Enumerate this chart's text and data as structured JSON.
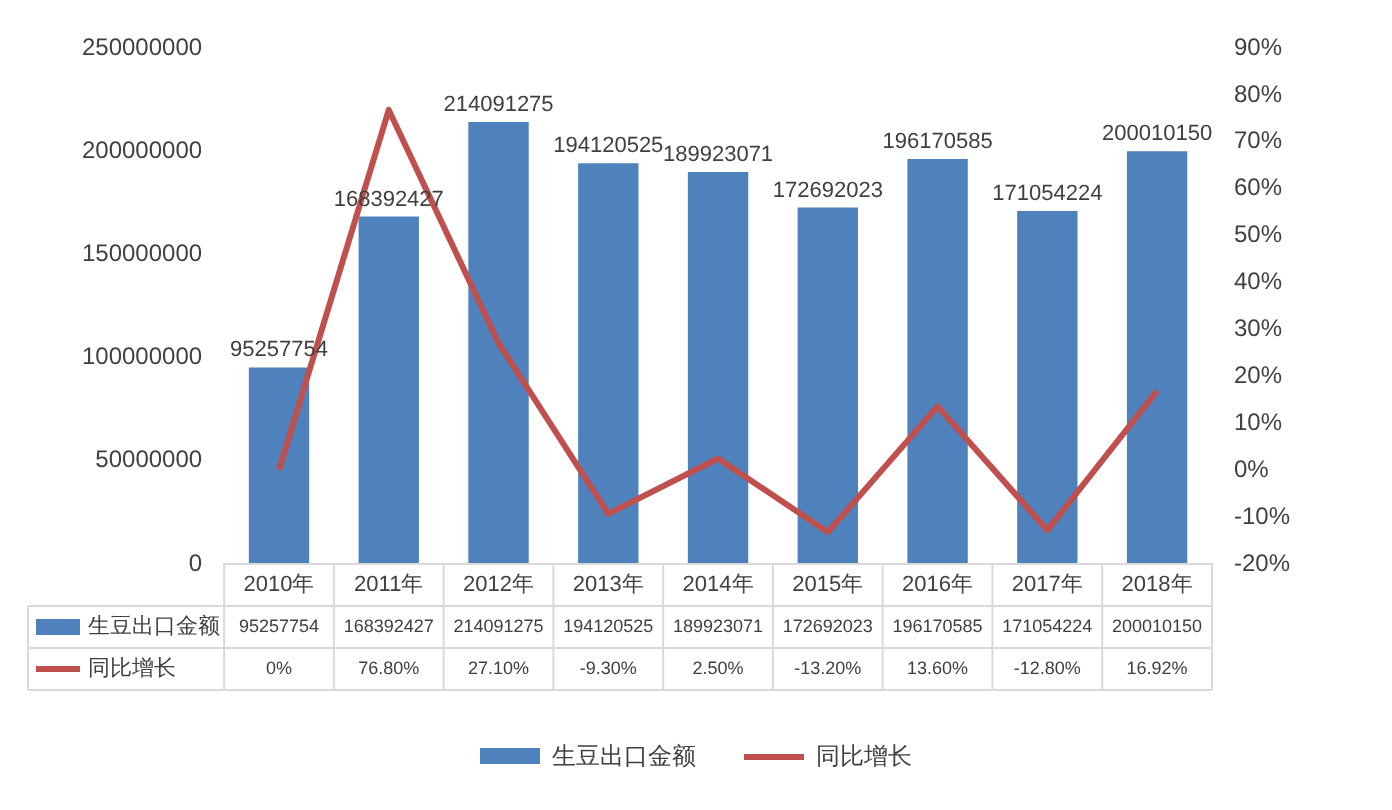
{
  "chart_data": {
    "type": "bar",
    "categories": [
      "2010年",
      "2011年",
      "2012年",
      "2013年",
      "2014年",
      "2015年",
      "2016年",
      "2017年",
      "2018年"
    ],
    "series": [
      {
        "name": "生豆出口金额",
        "color": "#4f81bd",
        "values": [
          95257754,
          168392427,
          214091275,
          194120525,
          189923071,
          172692023,
          196170585,
          171054224,
          200010150
        ],
        "value_labels": [
          "95257754",
          "168392427",
          "214091275",
          "194120525",
          "189923071",
          "172692023",
          "196170585",
          "171054224",
          "200010150"
        ]
      },
      {
        "name": "同比增长",
        "type": "line",
        "axis": "y2",
        "color": "#c0504d",
        "values": [
          0,
          76.8,
          27.1,
          -9.3,
          2.5,
          -13.2,
          13.6,
          -12.8,
          16.92
        ],
        "value_labels": [
          "0%",
          "76.80%",
          "27.10%",
          "-9.30%",
          "2.50%",
          "-13.20%",
          "13.60%",
          "-12.80%",
          "16.92%"
        ]
      }
    ],
    "ylim": [
      0,
      250000000
    ],
    "yticks": [
      0,
      50000000,
      100000000,
      150000000,
      200000000,
      250000000
    ],
    "y2lim": [
      -20,
      90
    ],
    "y2ticks": [
      {
        "value": -20,
        "label": "-20%"
      },
      {
        "value": -10,
        "label": "-10%"
      },
      {
        "value": 0,
        "label": "0%"
      },
      {
        "value": 10,
        "label": "10%"
      },
      {
        "value": 20,
        "label": "20%"
      },
      {
        "value": 30,
        "label": "30%"
      },
      {
        "value": 40,
        "label": "40%"
      },
      {
        "value": 50,
        "label": "50%"
      },
      {
        "value": 60,
        "label": "60%"
      },
      {
        "value": 70,
        "label": "70%"
      },
      {
        "value": 80,
        "label": "80%"
      },
      {
        "value": 90,
        "label": "90%"
      }
    ],
    "legend": "bottom",
    "grid": false,
    "marker": "none",
    "line_style": "solid"
  }
}
